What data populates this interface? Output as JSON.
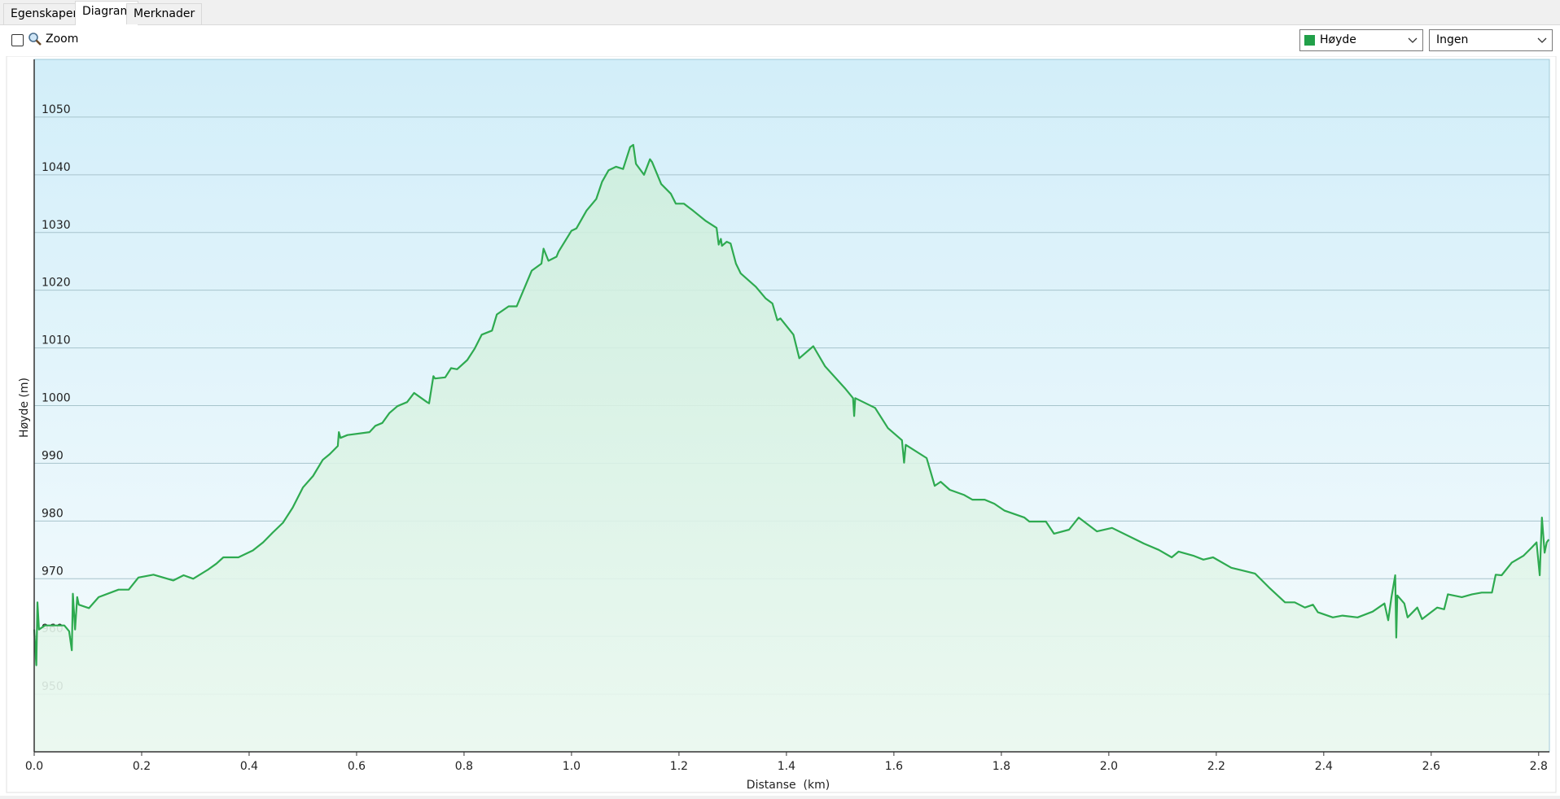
{
  "ui": {
    "tabs": [
      "Egenskaper",
      "Diagram",
      "Merknader"
    ],
    "zoom_label": "Zoom",
    "second_select": "Ingen"
  },
  "chart_data": {
    "type": "line",
    "x_label": "Distanse  (km)",
    "y_label": "Høyde (m)",
    "xlim": [
      0,
      2.82
    ],
    "ylim": [
      940,
      1060
    ],
    "xticks": [
      {
        "value": 0,
        "label": "0.0"
      },
      0.2,
      0.4,
      0.6,
      0.8,
      {
        "value": 1,
        "label": "1.0"
      },
      1.2,
      1.4,
      1.6,
      1.8,
      {
        "value": 2,
        "label": "2.0"
      },
      2.2,
      2.4,
      2.6,
      2.8
    ],
    "yticks": [
      950,
      960,
      970,
      980,
      990,
      1000,
      1010,
      1020,
      1030,
      1040,
      1050
    ],
    "grid": true,
    "x": [
      0.0,
      0.004,
      0.006,
      0.009,
      0.02,
      0.056,
      0.065,
      0.07,
      0.072,
      0.076,
      0.08,
      0.083,
      0.102,
      0.12,
      0.157,
      0.176,
      0.194,
      0.222,
      0.259,
      0.278,
      0.296,
      0.324,
      0.339,
      0.352,
      0.38,
      0.407,
      0.426,
      0.444,
      0.463,
      0.481,
      0.5,
      0.519,
      0.537,
      0.55,
      0.565,
      0.567,
      0.57,
      0.583,
      0.624,
      0.635,
      0.648,
      0.661,
      0.676,
      0.694,
      0.707,
      0.731,
      0.735,
      0.743,
      0.746,
      0.765,
      0.776,
      0.787,
      0.806,
      0.82,
      0.833,
      0.852,
      0.861,
      0.883,
      0.898,
      0.926,
      0.944,
      0.948,
      0.957,
      0.972,
      0.976,
      1.0,
      1.009,
      1.028,
      1.046,
      1.057,
      1.069,
      1.083,
      1.096,
      1.109,
      1.115,
      1.12,
      1.135,
      1.146,
      1.15,
      1.167,
      1.185,
      1.194,
      1.209,
      1.226,
      1.25,
      1.27,
      1.274,
      1.278,
      1.28,
      1.289,
      1.296,
      1.306,
      1.315,
      1.343,
      1.361,
      1.374,
      1.383,
      1.389,
      1.413,
      1.424,
      1.45,
      1.472,
      1.509,
      1.524,
      1.526,
      1.528,
      1.565,
      1.589,
      1.615,
      1.619,
      1.622,
      1.661,
      1.676,
      1.687,
      1.704,
      1.731,
      1.746,
      1.769,
      1.787,
      1.806,
      1.843,
      1.852,
      1.883,
      1.898,
      1.926,
      1.944,
      1.978,
      2.006,
      2.065,
      2.093,
      2.117,
      2.13,
      2.157,
      2.176,
      2.194,
      2.228,
      2.272,
      2.298,
      2.328,
      2.346,
      2.365,
      2.38,
      2.389,
      2.417,
      2.435,
      2.463,
      2.491,
      2.513,
      2.52,
      2.526,
      2.533,
      2.535,
      2.537,
      2.55,
      2.556,
      2.574,
      2.583,
      2.611,
      2.624,
      2.631,
      2.657,
      2.676,
      2.694,
      2.713,
      2.72,
      2.731,
      2.75,
      2.772,
      2.787,
      2.796,
      2.802,
      2.806,
      2.811,
      2.815,
      2.819
    ],
    "series": [
      {
        "name": "Høyde",
        "color": "#2eaa50",
        "values": [
          961.2,
          955.0,
          965.9,
          961.2,
          961.9,
          961.9,
          960.9,
          957.6,
          967.4,
          961.2,
          966.8,
          965.5,
          964.9,
          966.8,
          968.1,
          968.1,
          970.2,
          970.7,
          969.7,
          970.6,
          970.0,
          971.6,
          972.6,
          973.7,
          973.7,
          974.9,
          976.3,
          978.0,
          979.7,
          982.3,
          985.8,
          987.8,
          990.6,
          991.6,
          993.0,
          995.4,
          994.4,
          994.9,
          995.4,
          996.5,
          997.0,
          998.7,
          999.9,
          1000.6,
          1002.2,
          1000.6,
          1000.4,
          1005.1,
          1004.7,
          1004.9,
          1006.5,
          1006.3,
          1007.9,
          1009.9,
          1012.3,
          1013.0,
          1015.8,
          1017.2,
          1017.2,
          1023.4,
          1024.6,
          1027.2,
          1025.1,
          1025.8,
          1026.7,
          1030.3,
          1030.7,
          1033.8,
          1035.8,
          1038.8,
          1040.8,
          1041.4,
          1041.0,
          1044.8,
          1045.2,
          1041.9,
          1040.0,
          1042.7,
          1042.2,
          1038.4,
          1036.7,
          1035.0,
          1035.0,
          1033.8,
          1032.0,
          1030.8,
          1027.9,
          1028.9,
          1027.7,
          1028.4,
          1028.1,
          1024.6,
          1022.9,
          1020.6,
          1018.6,
          1017.7,
          1014.8,
          1015.1,
          1012.3,
          1008.2,
          1010.3,
          1006.8,
          1003.0,
          1001.3,
          998.2,
          1001.3,
          999.6,
          996.1,
          994.0,
          990.1,
          993.2,
          990.9,
          986.1,
          986.8,
          985.4,
          984.5,
          983.7,
          983.7,
          983.0,
          981.8,
          980.6,
          979.9,
          979.9,
          977.8,
          978.5,
          980.6,
          978.2,
          978.8,
          976.1,
          975.0,
          973.7,
          974.7,
          974.0,
          973.3,
          973.7,
          971.9,
          970.9,
          968.5,
          965.9,
          965.9,
          965.0,
          965.5,
          964.2,
          963.3,
          963.6,
          963.3,
          964.3,
          965.7,
          962.8,
          966.8,
          970.6,
          959.8,
          967.1,
          965.7,
          963.3,
          965.0,
          963.0,
          965.0,
          964.7,
          967.3,
          966.8,
          967.3,
          967.6,
          967.6,
          970.7,
          970.6,
          972.8,
          974.0,
          975.4,
          976.3,
          970.6,
          980.6,
          974.5,
          976.3,
          976.8
        ]
      }
    ]
  }
}
